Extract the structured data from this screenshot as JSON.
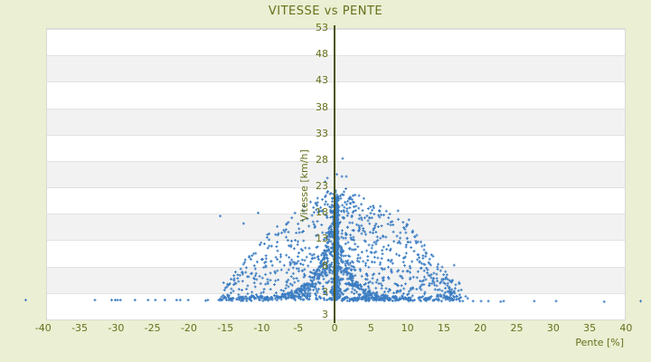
{
  "colors": {
    "background": "#ebefd3",
    "text_olive": "#67701c",
    "axis_line": "#4a530f",
    "marker_blue": "#3b7dc2",
    "band_gray": "#f2f2f2",
    "gridline": "#e2e2e2",
    "plot_bg": "#ffffff"
  },
  "chart_data": {
    "type": "scatter",
    "title": "VITESSE vs PENTE",
    "xlabel": "Pente [%]",
    "ylabel": "Vitesse [km/h]",
    "xlim": [
      -39.6,
      39.7
    ],
    "ylim": [
      -2,
      53
    ],
    "x_ticks": [
      -40,
      -35,
      -30,
      -25,
      -20,
      -15,
      -10,
      -5,
      0,
      5,
      10,
      15,
      20,
      25,
      30,
      35,
      40
    ],
    "y_ticks": [
      53,
      48,
      43,
      38,
      33,
      28,
      23,
      18,
      13,
      8,
      3
    ],
    "y_axis_end_label": "3",
    "legend": "none",
    "grid": "horizontal-bands",
    "marker": {
      "shape": "plus",
      "size": 3,
      "color": "#3b7dc2"
    },
    "generation": {
      "seed": 20,
      "clusters": [
        {
          "kind": "bar",
          "n": 380,
          "x": [
            0.05,
            0.5
          ],
          "y": [
            1.6,
            21.2
          ]
        },
        {
          "kind": "wedge",
          "n": 720,
          "side": 1,
          "xmax": 17.5,
          "xbias": 1.9,
          "ymin": 1.5,
          "ybias": 1.35,
          "knots_x": [
            0,
            2,
            4,
            6,
            8,
            10,
            12,
            14,
            16,
            17.5
          ],
          "knots_env": [
            23,
            22,
            21,
            19.5,
            18,
            16,
            13,
            9,
            6,
            4.5
          ]
        },
        {
          "kind": "wedge",
          "n": 540,
          "side": -1,
          "xmax": 15.5,
          "xbias": 2.0,
          "ymin": 1.5,
          "ybias": 1.35,
          "knots_x": [
            0,
            2,
            4,
            6,
            8,
            10,
            12,
            14,
            15.5
          ],
          "knots_env": [
            23,
            21.5,
            19.5,
            17.5,
            15.5,
            13,
            10,
            6.5,
            4.5
          ]
        },
        {
          "kind": "arc",
          "n": 50,
          "x0": -8,
          "yend": 12
        },
        {
          "kind": "arc",
          "n": 45,
          "x0": -9.5,
          "yend": 9
        },
        {
          "kind": "arc",
          "n": 40,
          "x0": -11,
          "yend": 6.5
        },
        {
          "kind": "arc",
          "n": 45,
          "x0": -6.5,
          "yend": 15
        },
        {
          "kind": "arc",
          "n": 40,
          "x0": -5,
          "yend": 18
        },
        {
          "kind": "arc",
          "n": 35,
          "x0": -4,
          "yend": 20.5
        },
        {
          "kind": "arc",
          "n": 45,
          "x0": 8,
          "yend": 9
        },
        {
          "kind": "arc",
          "n": 40,
          "x0": 10.5,
          "yend": 6
        },
        {
          "kind": "arc",
          "n": 35,
          "x0": 6,
          "yend": 12.5
        },
        {
          "kind": "arc",
          "n": 30,
          "x0": 4.5,
          "yend": 16
        },
        {
          "kind": "hline",
          "n": 50,
          "x": [
            -16,
            -8
          ],
          "y": [
            1.3,
            2.2
          ]
        },
        {
          "kind": "hline",
          "n": 90,
          "x": [
            1,
            12
          ],
          "y": [
            1.3,
            2.1
          ]
        },
        {
          "kind": "hline",
          "n": 30,
          "x": [
            12,
            18.5
          ],
          "y": [
            1.3,
            2.3
          ]
        }
      ]
    },
    "outlier_points": [
      [
        -42.4,
        1.5
      ],
      [
        -32.9,
        1.5
      ],
      [
        -30.6,
        1.5
      ],
      [
        -30.1,
        1.5
      ],
      [
        -29.8,
        1.5
      ],
      [
        -29.4,
        1.5
      ],
      [
        -27.4,
        1.5
      ],
      [
        -25.6,
        1.5
      ],
      [
        -24.6,
        1.5
      ],
      [
        -23.3,
        1.5
      ],
      [
        -21.7,
        1.5
      ],
      [
        -21.2,
        1.5
      ],
      [
        -20.1,
        1.5
      ],
      [
        -17.7,
        1.4
      ],
      [
        -17.4,
        1.5
      ],
      [
        -15.9,
        1.5
      ],
      [
        -15.7,
        17.4
      ],
      [
        -12.5,
        16.0
      ],
      [
        -10.5,
        18.0
      ],
      [
        -1.3,
        23.9
      ],
      [
        -1.0,
        24.6
      ],
      [
        0.3,
        25.3
      ],
      [
        1.0,
        24.9
      ],
      [
        1.6,
        24.9
      ],
      [
        1.1,
        28.3
      ],
      [
        8.7,
        18.4
      ],
      [
        10.2,
        16.7
      ],
      [
        12.0,
        11.7
      ],
      [
        16.4,
        8.1
      ],
      [
        14.0,
        6.4
      ],
      [
        14.1,
        5.1
      ],
      [
        13.8,
        3.5
      ],
      [
        14.5,
        2.5
      ],
      [
        15.0,
        2.5
      ],
      [
        14.1,
        1.6
      ],
      [
        16.7,
        1.6
      ],
      [
        17.6,
        1.3
      ],
      [
        19.0,
        1.3
      ],
      [
        20.1,
        1.3
      ],
      [
        21.1,
        1.3
      ],
      [
        22.8,
        1.2
      ],
      [
        23.2,
        1.3
      ],
      [
        27.4,
        1.3
      ],
      [
        30.4,
        1.3
      ],
      [
        37.0,
        1.2
      ],
      [
        42.0,
        1.3
      ]
    ]
  }
}
